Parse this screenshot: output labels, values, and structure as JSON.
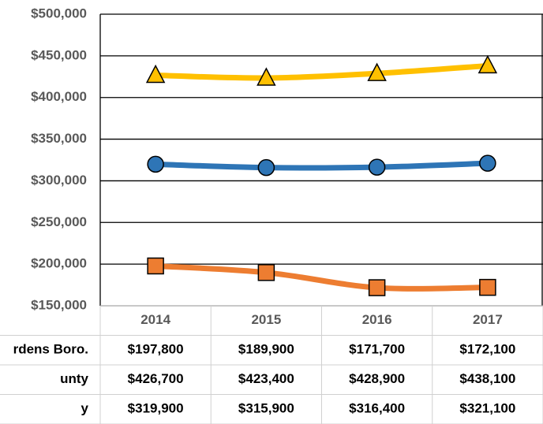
{
  "chart_data": {
    "type": "line",
    "categories": [
      "2014",
      "2015",
      "2016",
      "2017"
    ],
    "series": [
      {
        "name": "rdens Boro.",
        "color": "#ED7D31",
        "marker": "square",
        "values": [
          197800,
          189900,
          171700,
          172100
        ],
        "value_labels": [
          "$197,800",
          "$189,900",
          "$171,700",
          "$172,100"
        ]
      },
      {
        "name": "unty",
        "color": "#FFC000",
        "marker": "triangle",
        "values": [
          426700,
          423400,
          428900,
          438100
        ],
        "value_labels": [
          "$426,700",
          "$423,400",
          "$428,900",
          "$438,100"
        ]
      },
      {
        "name": "y",
        "color": "#2E75B6",
        "marker": "circle",
        "values": [
          319900,
          315900,
          316400,
          321100
        ],
        "value_labels": [
          "$319,900",
          "$315,900",
          "$316,400",
          "$321,100"
        ]
      }
    ],
    "ylim": [
      150000,
      500000
    ],
    "yticks": [
      {
        "value": 150000,
        "label": "$150,000"
      },
      {
        "value": 200000,
        "label": "$200,000"
      },
      {
        "value": 250000,
        "label": "$250,000"
      },
      {
        "value": 300000,
        "label": "$300,000"
      },
      {
        "value": 350000,
        "label": "$350,000"
      },
      {
        "value": 400000,
        "label": "$400,000"
      },
      {
        "value": 450000,
        "label": "$450,000"
      },
      {
        "value": 500000,
        "label": "$500,000"
      }
    ],
    "grid": true
  }
}
